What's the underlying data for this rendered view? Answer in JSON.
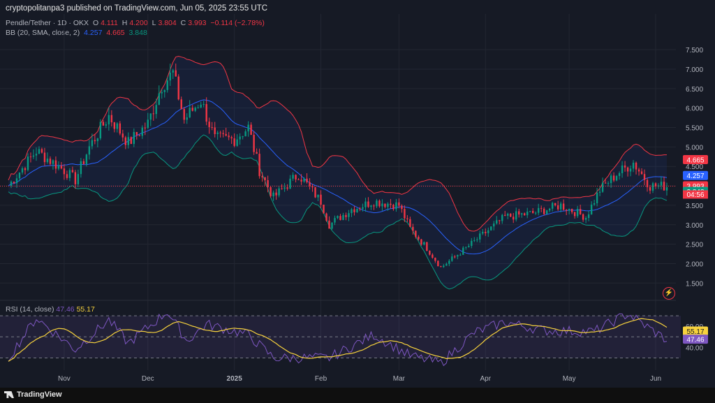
{
  "header": {
    "title": "cryptopolitanpa3 published on TradingView.com, Jun 05, 2025 23:55 UTC"
  },
  "legend": {
    "symbol": "Pendle/Tether · 1D · OKX",
    "open_label": "O",
    "open": "4.111",
    "high_label": "H",
    "high": "4.200",
    "low_label": "L",
    "low": "3.804",
    "close_label": "C",
    "close": "3.993",
    "change": "−0.114 (−2.78%)",
    "bb_label": "BB (20, SMA, close, 2)",
    "bb_basis": "4.257",
    "bb_upper": "4.665",
    "bb_lower": "3.848",
    "rsi_label": "RSI (14, close)",
    "rsi": "47.46",
    "rsi_ma": "55.17"
  },
  "footer": {
    "brand": "TradingView"
  },
  "colors": {
    "up": "#089981",
    "down": "#f23645",
    "basis": "#2962ff",
    "upper": "#f23645",
    "lower": "#089981",
    "rsi": "#7e57c2",
    "rsi_ma": "#f7d23d"
  },
  "chart_data": [
    {
      "type": "candlestick",
      "y_ticks": [
        "7.500",
        "7.000",
        "6.500",
        "6.000",
        "5.500",
        "5.000",
        "4.500",
        "4.000",
        "3.500",
        "3.000",
        "2.500",
        "2.000",
        "1.500"
      ],
      "ylim": [
        1.2,
        7.7
      ],
      "x_ticks": [
        "Nov",
        "Dec",
        "2025",
        "Feb",
        "Mar",
        "Apr",
        "May",
        "Jun"
      ],
      "x_tick_dates": [
        "2024-11-01",
        "2024-12-01",
        "2025-01-01",
        "2025-02-01",
        "2025-03-01",
        "2025-04-01",
        "2025-05-01",
        "2025-06-01"
      ],
      "start_date": "2024-10-12",
      "end_date": "2025-06-05",
      "price_labels": {
        "upper": "4.665",
        "basis": "4.257",
        "close": "3.993",
        "countdown": "04:56",
        "lower": "3.848"
      },
      "anchors": [
        {
          "date": "2024-10-12",
          "price": 4.0
        },
        {
          "date": "2024-10-22",
          "price": 4.9
        },
        {
          "date": "2024-11-01",
          "price": 4.4
        },
        {
          "date": "2024-11-05",
          "price": 4.15
        },
        {
          "date": "2024-11-10",
          "price": 5.0
        },
        {
          "date": "2024-11-17",
          "price": 5.8
        },
        {
          "date": "2024-11-24",
          "price": 5.1
        },
        {
          "date": "2024-12-01",
          "price": 5.6
        },
        {
          "date": "2024-12-06",
          "price": 6.6
        },
        {
          "date": "2024-12-10",
          "price": 6.9
        },
        {
          "date": "2024-12-14",
          "price": 5.7
        },
        {
          "date": "2024-12-20",
          "price": 6.2
        },
        {
          "date": "2024-12-25",
          "price": 5.2
        },
        {
          "date": "2025-01-01",
          "price": 5.2
        },
        {
          "date": "2025-01-06",
          "price": 5.5
        },
        {
          "date": "2025-01-10",
          "price": 4.4
        },
        {
          "date": "2025-01-15",
          "price": 3.7
        },
        {
          "date": "2025-01-24",
          "price": 4.3
        },
        {
          "date": "2025-02-01",
          "price": 3.6
        },
        {
          "date": "2025-02-04",
          "price": 3.0
        },
        {
          "date": "2025-02-12",
          "price": 3.4
        },
        {
          "date": "2025-02-20",
          "price": 3.6
        },
        {
          "date": "2025-03-01",
          "price": 3.5
        },
        {
          "date": "2025-03-05",
          "price": 2.9
        },
        {
          "date": "2025-03-11",
          "price": 2.4
        },
        {
          "date": "2025-03-16",
          "price": 1.9
        },
        {
          "date": "2025-03-25",
          "price": 2.4
        },
        {
          "date": "2025-04-01",
          "price": 2.8
        },
        {
          "date": "2025-04-08",
          "price": 3.2
        },
        {
          "date": "2025-04-18",
          "price": 3.3
        },
        {
          "date": "2025-04-28",
          "price": 3.5
        },
        {
          "date": "2025-05-07",
          "price": 3.2
        },
        {
          "date": "2025-05-12",
          "price": 3.9
        },
        {
          "date": "2025-05-18",
          "price": 4.3
        },
        {
          "date": "2025-05-24",
          "price": 4.6
        },
        {
          "date": "2025-05-30",
          "price": 4.0
        },
        {
          "date": "2025-06-05",
          "price": 3.99
        }
      ],
      "series": [
        {
          "name": "BB basis",
          "color": "#2962ff"
        },
        {
          "name": "BB upper",
          "color": "#f23645"
        },
        {
          "name": "BB lower",
          "color": "#089981"
        }
      ]
    },
    {
      "type": "line",
      "y_ticks": [
        "60.00",
        "40.00"
      ],
      "ylim": [
        25,
        78
      ],
      "band": [
        30,
        70
      ],
      "value_labels": {
        "rsi_ma": "55.17",
        "rsi": "47.46"
      },
      "anchors": [
        {
          "date": "2024-10-12",
          "rsi": 30
        },
        {
          "date": "2024-10-22",
          "rsi": 68
        },
        {
          "date": "2024-11-05",
          "rsi": 38
        },
        {
          "date": "2024-11-17",
          "rsi": 66
        },
        {
          "date": "2024-11-24",
          "rsi": 44
        },
        {
          "date": "2024-12-08",
          "rsi": 74
        },
        {
          "date": "2024-12-15",
          "rsi": 46
        },
        {
          "date": "2024-12-22",
          "rsi": 62
        },
        {
          "date": "2025-01-06",
          "rsi": 52
        },
        {
          "date": "2025-01-15",
          "rsi": 30
        },
        {
          "date": "2025-02-04",
          "rsi": 30
        },
        {
          "date": "2025-02-20",
          "rsi": 52
        },
        {
          "date": "2025-03-05",
          "rsi": 32
        },
        {
          "date": "2025-03-16",
          "rsi": 25
        },
        {
          "date": "2025-03-28",
          "rsi": 54
        },
        {
          "date": "2025-04-08",
          "rsi": 64
        },
        {
          "date": "2025-04-22",
          "rsi": 56
        },
        {
          "date": "2025-05-10",
          "rsi": 55
        },
        {
          "date": "2025-05-22",
          "rsi": 72
        },
        {
          "date": "2025-06-05",
          "rsi": 47
        }
      ],
      "series": [
        {
          "name": "RSI",
          "color": "#7e57c2"
        },
        {
          "name": "RSI MA",
          "color": "#f7d23d"
        }
      ]
    }
  ]
}
